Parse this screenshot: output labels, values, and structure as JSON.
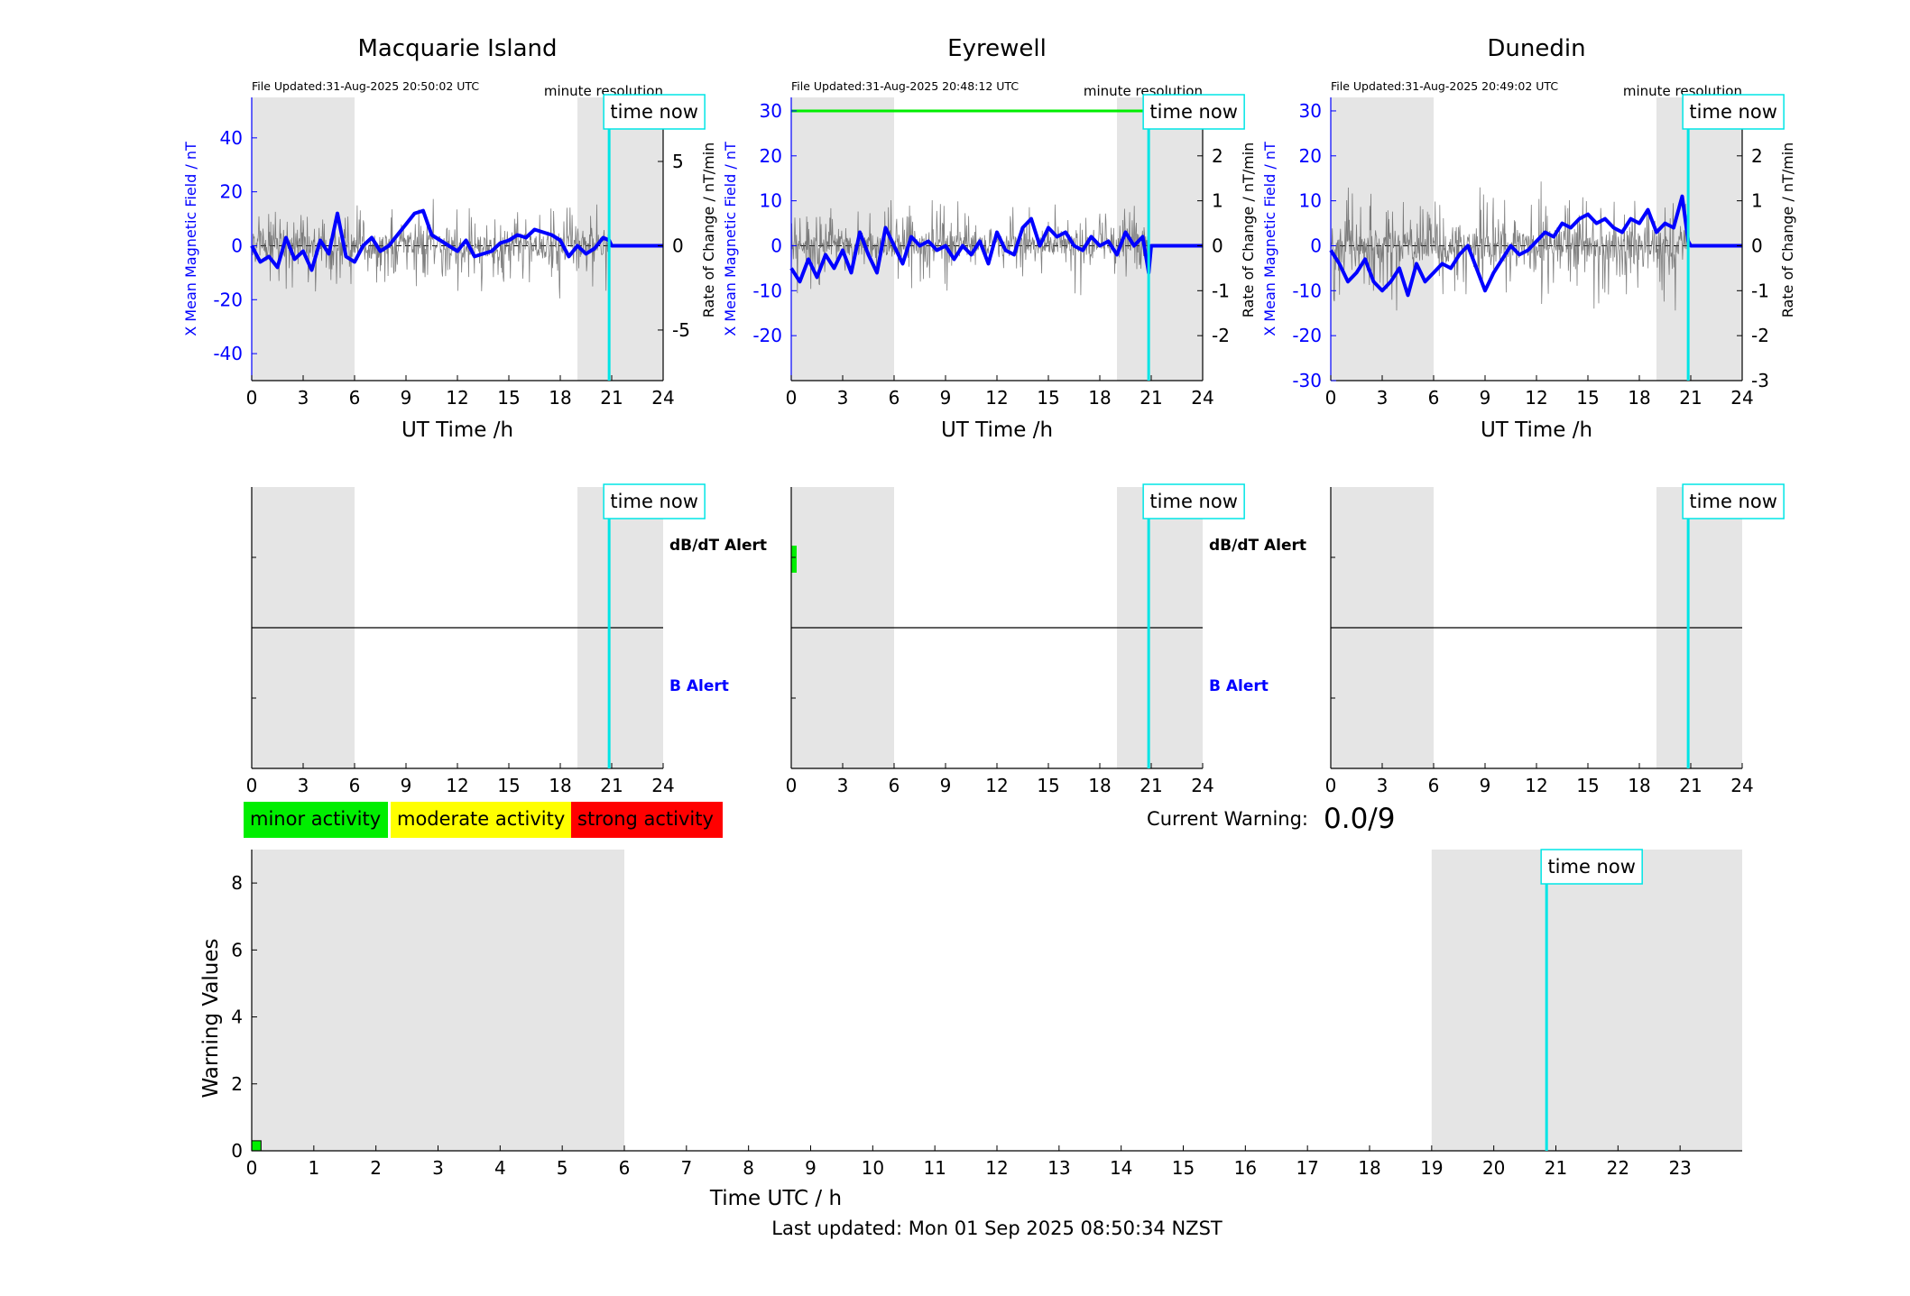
{
  "colors": {
    "x_series": "#0000ff",
    "rate_series": "#555555",
    "now_line": "#00e5e5",
    "shade": "#e5e5e5",
    "threshold": "#00ee00",
    "minor": "#00ee00",
    "moderate": "#ffff00",
    "strong": "#ff0000"
  },
  "labels": {
    "x_ylabel": "X Mean Magnetic Field / nT",
    "rate_ylabel": "Rate of Change / nT/min",
    "time_xlabel": "UT Time /h",
    "minute_res": "minute resolution",
    "time_now": "time now",
    "dbdt_alert": "dB/dT Alert",
    "b_alert": "B Alert",
    "current_warning_label": "Current Warning:",
    "current_warning_value": "0.0/9",
    "warn_ylabel": "Warning Values",
    "warn_xlabel": "Time UTC / h",
    "last_updated": "Last updated: Mon 01 Sep 2025 08:50:34 NZST"
  },
  "legend": [
    "minor activity",
    "moderate activity",
    "strong activity"
  ],
  "chart_data": [
    {
      "type": "line",
      "station": "Macquarie Island",
      "file_updated": "File Updated:31-Aug-2025 20:50:02 UTC",
      "xlim": [
        0,
        24
      ],
      "xticks": [
        0,
        3,
        6,
        9,
        12,
        15,
        18,
        21,
        24
      ],
      "ylim_left": [
        -50,
        55
      ],
      "yticks_left": [
        -40,
        -20,
        0,
        20,
        40
      ],
      "ylim_right": [
        -8,
        8.8
      ],
      "yticks_right": [
        -5,
        0,
        5
      ],
      "shaded": [
        [
          0,
          6
        ],
        [
          19,
          24
        ]
      ],
      "time_now": 20.85,
      "threshold": null,
      "series": [
        {
          "name": "X mean",
          "x": [
            0,
            0.5,
            1,
            1.5,
            2,
            2.5,
            3,
            3.5,
            4,
            4.5,
            5,
            5.5,
            6,
            6.5,
            7,
            7.5,
            8,
            8.5,
            9,
            9.5,
            10,
            10.5,
            11,
            11.5,
            12,
            12.5,
            13,
            13.5,
            14,
            14.5,
            15,
            15.5,
            16,
            16.5,
            17,
            17.5,
            18,
            18.5,
            19,
            19.5,
            20,
            20.5,
            20.85,
            21,
            24
          ],
          "values": [
            0,
            -6,
            -4,
            -8,
            3,
            -5,
            -2,
            -9,
            2,
            -3,
            12,
            -4,
            -6,
            0,
            3,
            -2,
            0,
            4,
            8,
            12,
            13,
            4,
            2,
            0,
            -2,
            2,
            -4,
            -3,
            -2,
            1,
            2,
            4,
            3,
            6,
            5,
            4,
            2,
            -4,
            0,
            -3,
            -1,
            3,
            2,
            0,
            0
          ]
        },
        {
          "name": "Rate of change",
          "amplitude": 3.5,
          "range": [
            0,
            20.85
          ]
        }
      ]
    },
    {
      "type": "line",
      "station": "Eyrewell",
      "file_updated": "File Updated:31-Aug-2025 20:48:12 UTC",
      "xlim": [
        0,
        24
      ],
      "xticks": [
        0,
        3,
        6,
        9,
        12,
        15,
        18,
        21,
        24
      ],
      "ylim_left": [
        -30,
        33
      ],
      "yticks_left": [
        -20,
        -10,
        0,
        10,
        20,
        30
      ],
      "ylim_right": [
        -3,
        3.3
      ],
      "yticks_right": [
        -2,
        -1,
        0,
        1,
        2,
        3
      ],
      "shaded": [
        [
          0,
          6
        ],
        [
          19,
          24
        ]
      ],
      "time_now": 20.85,
      "threshold": 30,
      "series": [
        {
          "name": "X mean",
          "x": [
            0,
            0.5,
            1,
            1.5,
            2,
            2.5,
            3,
            3.5,
            4,
            4.5,
            5,
            5.5,
            6,
            6.5,
            7,
            7.5,
            8,
            8.5,
            9,
            9.5,
            10,
            10.5,
            11,
            11.5,
            12,
            12.5,
            13,
            13.5,
            14,
            14.5,
            15,
            15.5,
            16,
            16.5,
            17,
            17.5,
            18,
            18.5,
            19,
            19.5,
            20,
            20.5,
            20.85,
            21,
            24
          ],
          "values": [
            -5,
            -8,
            -3,
            -7,
            -2,
            -5,
            -1,
            -6,
            3,
            -2,
            -6,
            4,
            0,
            -4,
            2,
            0,
            1,
            -1,
            0,
            -3,
            0,
            -2,
            1,
            -4,
            3,
            -1,
            -2,
            4,
            6,
            0,
            4,
            2,
            3,
            0,
            -1,
            2,
            0,
            1,
            -2,
            3,
            0,
            2,
            -6,
            0,
            0
          ]
        },
        {
          "name": "Rate of change",
          "amplitude": 1.2,
          "range": [
            0,
            20.85
          ]
        }
      ]
    },
    {
      "type": "line",
      "station": "Dunedin",
      "file_updated": "File Updated:31-Aug-2025 20:49:02 UTC",
      "xlim": [
        0,
        24
      ],
      "xticks": [
        0,
        3,
        6,
        9,
        12,
        15,
        18,
        21,
        24
      ],
      "ylim_left": [
        -30,
        33
      ],
      "yticks_left": [
        -30,
        -20,
        -10,
        0,
        10,
        20,
        30
      ],
      "ylim_right": [
        -3,
        3.3
      ],
      "yticks_right": [
        -3,
        -2,
        -1,
        0,
        1,
        2,
        3
      ],
      "shaded": [
        [
          0,
          6
        ],
        [
          19,
          24
        ]
      ],
      "time_now": 20.85,
      "threshold": null,
      "series": [
        {
          "name": "X mean",
          "x": [
            0,
            0.5,
            1,
            1.5,
            2,
            2.5,
            3,
            3.5,
            4,
            4.5,
            5,
            5.5,
            6,
            6.5,
            7,
            7.5,
            8,
            8.5,
            9,
            9.5,
            10,
            10.5,
            11,
            11.5,
            12,
            12.5,
            13,
            13.5,
            14,
            14.5,
            15,
            15.5,
            16,
            16.5,
            17,
            17.5,
            18,
            18.5,
            19,
            19.5,
            20,
            20.5,
            20.85,
            21,
            24
          ],
          "values": [
            -1,
            -4,
            -8,
            -6,
            -3,
            -8,
            -10,
            -8,
            -5,
            -11,
            -4,
            -8,
            -6,
            -4,
            -5,
            -2,
            0,
            -5,
            -10,
            -6,
            -3,
            0,
            -2,
            -1,
            1,
            3,
            2,
            5,
            4,
            6,
            7,
            5,
            6,
            4,
            3,
            6,
            5,
            8,
            3,
            5,
            4,
            11,
            1,
            0,
            0
          ]
        },
        {
          "name": "Rate of change",
          "amplitude": 1.5,
          "range": [
            0,
            20.85
          ]
        }
      ]
    },
    {
      "type": "bar",
      "role": "alerts",
      "xlim": [
        0,
        24
      ],
      "xticks": [
        0,
        3,
        6,
        9,
        12,
        15,
        18,
        21,
        24
      ],
      "shaded": [
        [
          0,
          6
        ],
        [
          19,
          24
        ]
      ],
      "time_now": 20.85,
      "panels": [
        {
          "station": "Macquarie Island",
          "dbdt_alerts": [],
          "b_alerts": []
        },
        {
          "station": "Eyrewell",
          "dbdt_alerts": [
            {
              "start": 0,
              "end": 0.3,
              "level": "minor"
            }
          ],
          "b_alerts": []
        },
        {
          "station": "Dunedin",
          "dbdt_alerts": [],
          "b_alerts": []
        }
      ]
    },
    {
      "type": "bar",
      "role": "warning",
      "xlabel": "Time UTC / h",
      "ylabel": "Warning Values",
      "xlim": [
        0,
        24
      ],
      "xticks": [
        0,
        1,
        2,
        3,
        4,
        5,
        6,
        7,
        8,
        9,
        10,
        11,
        12,
        13,
        14,
        15,
        16,
        17,
        18,
        19,
        20,
        21,
        22,
        23
      ],
      "ylim": [
        0,
        9
      ],
      "yticks": [
        0,
        2,
        4,
        6,
        8
      ],
      "shaded": [
        [
          0,
          6
        ],
        [
          19,
          24
        ]
      ],
      "time_now": 20.85,
      "bars": [
        {
          "start": 0,
          "end": 0.15,
          "value": 0.3,
          "level": "minor"
        }
      ]
    }
  ]
}
